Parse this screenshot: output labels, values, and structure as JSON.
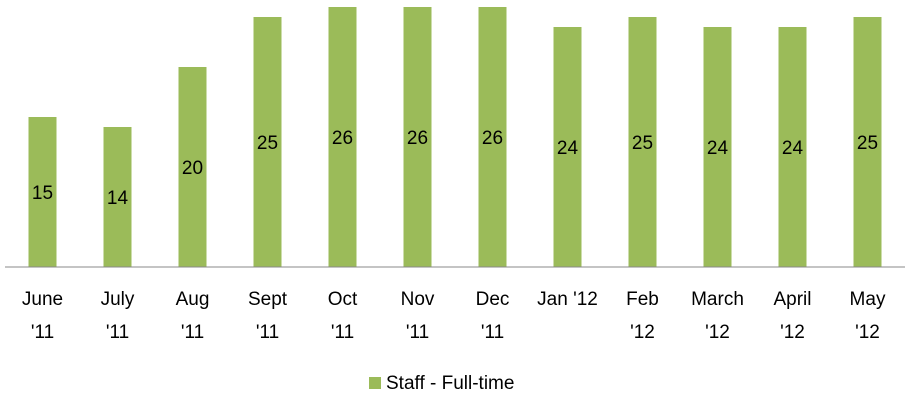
{
  "chart_data": {
    "type": "bar",
    "categories": [
      "June\n'11",
      "July\n'11",
      "Aug\n'11",
      "Sept\n'11",
      "Oct\n'11",
      "Nov\n'11",
      "Dec\n'11",
      "Jan '12",
      "Feb\n'12",
      "March\n'12",
      "April\n'12",
      "May\n'12"
    ],
    "series": [
      {
        "name": "Staff - Full-time",
        "color": "#9bbb59",
        "values": [
          15,
          14,
          20,
          25,
          26,
          26,
          26,
          24,
          25,
          24,
          24,
          25
        ]
      }
    ]
  }
}
